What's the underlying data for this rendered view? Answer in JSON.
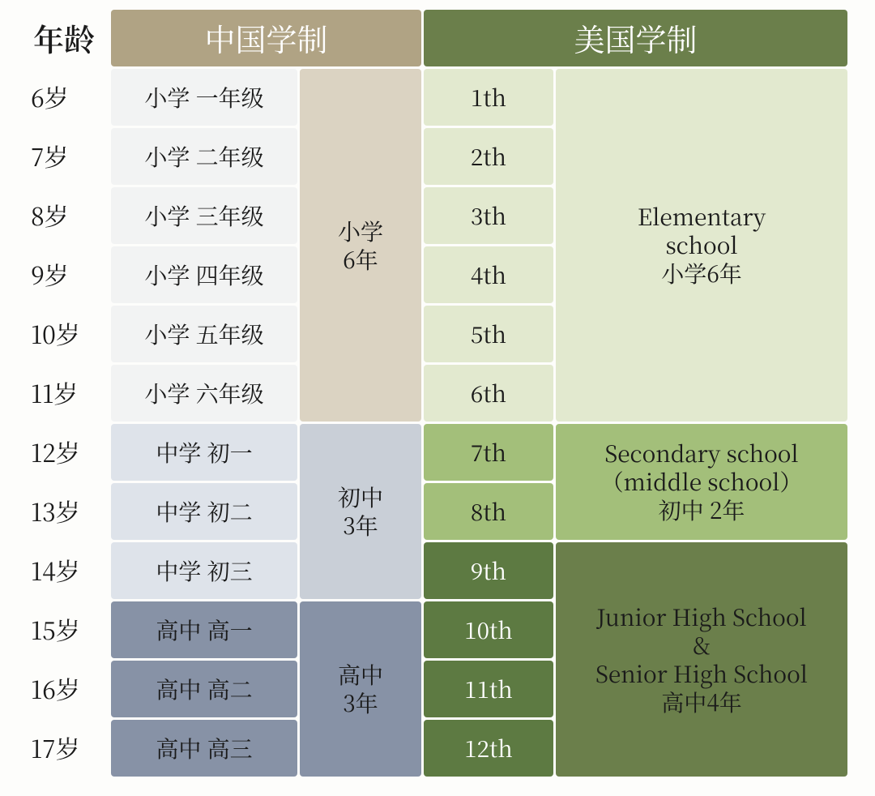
{
  "colors": {
    "page_bg": "#fdfdfb",
    "header_china_bg": "#b0a384",
    "header_us_bg": "#6b7f4b",
    "age_text": "#1a1a1a",
    "cn_elem_cell_bg": "#f2f3f3",
    "cn_elem_span_bg": "#dbd3c2",
    "cn_mid_cell_bg": "#dee3ea",
    "cn_mid_span_bg": "#c9cfd7",
    "cn_high_cell_bg": "#8792a6",
    "cn_high_span_bg": "#8792a6",
    "us_elem_cell_bg": "#e2e9cf",
    "us_elem_span_bg": "#e2e9cf",
    "us_mid_cell_bg": "#a3bf7a",
    "us_mid_span_bg": "#a3bf7a",
    "us_high_cell_bg": "#5d7a42",
    "us_high_span_bg": "#6b7f4b",
    "dark_text": "#1a1a1a",
    "light_text": "#ffffff"
  },
  "header": {
    "age": "年龄",
    "china": "中国学制",
    "us": "美国学制"
  },
  "ages": [
    "6岁",
    "7岁",
    "8岁",
    "9岁",
    "10岁",
    "11岁",
    "12岁",
    "13岁",
    "14岁",
    "15岁",
    "16岁",
    "17岁"
  ],
  "china_grades": [
    "小学 一年级",
    "小学 二年级",
    "小学 三年级",
    "小学 四年级",
    "小学 五年级",
    "小学 六年级",
    "中学 初一",
    "中学 初二",
    "中学 初三",
    "高中 高一",
    "高中 高二",
    "高中 高三"
  ],
  "china_stages": {
    "elementary": "小学\n6年",
    "middle": "初中\n3年",
    "high": "高中\n3年"
  },
  "us_grades": [
    "1th",
    "2th",
    "3th",
    "4th",
    "5th",
    "6th",
    "7th",
    "8th",
    "9th",
    "10th",
    "11th",
    "12th"
  ],
  "us_stages": {
    "elementary": "Elementary\nschool\n小学6年",
    "middle": "Secondary school\n（middle school）\n初中 2年",
    "high": "Junior High School\n&\nSenior High School\n高中4年"
  }
}
